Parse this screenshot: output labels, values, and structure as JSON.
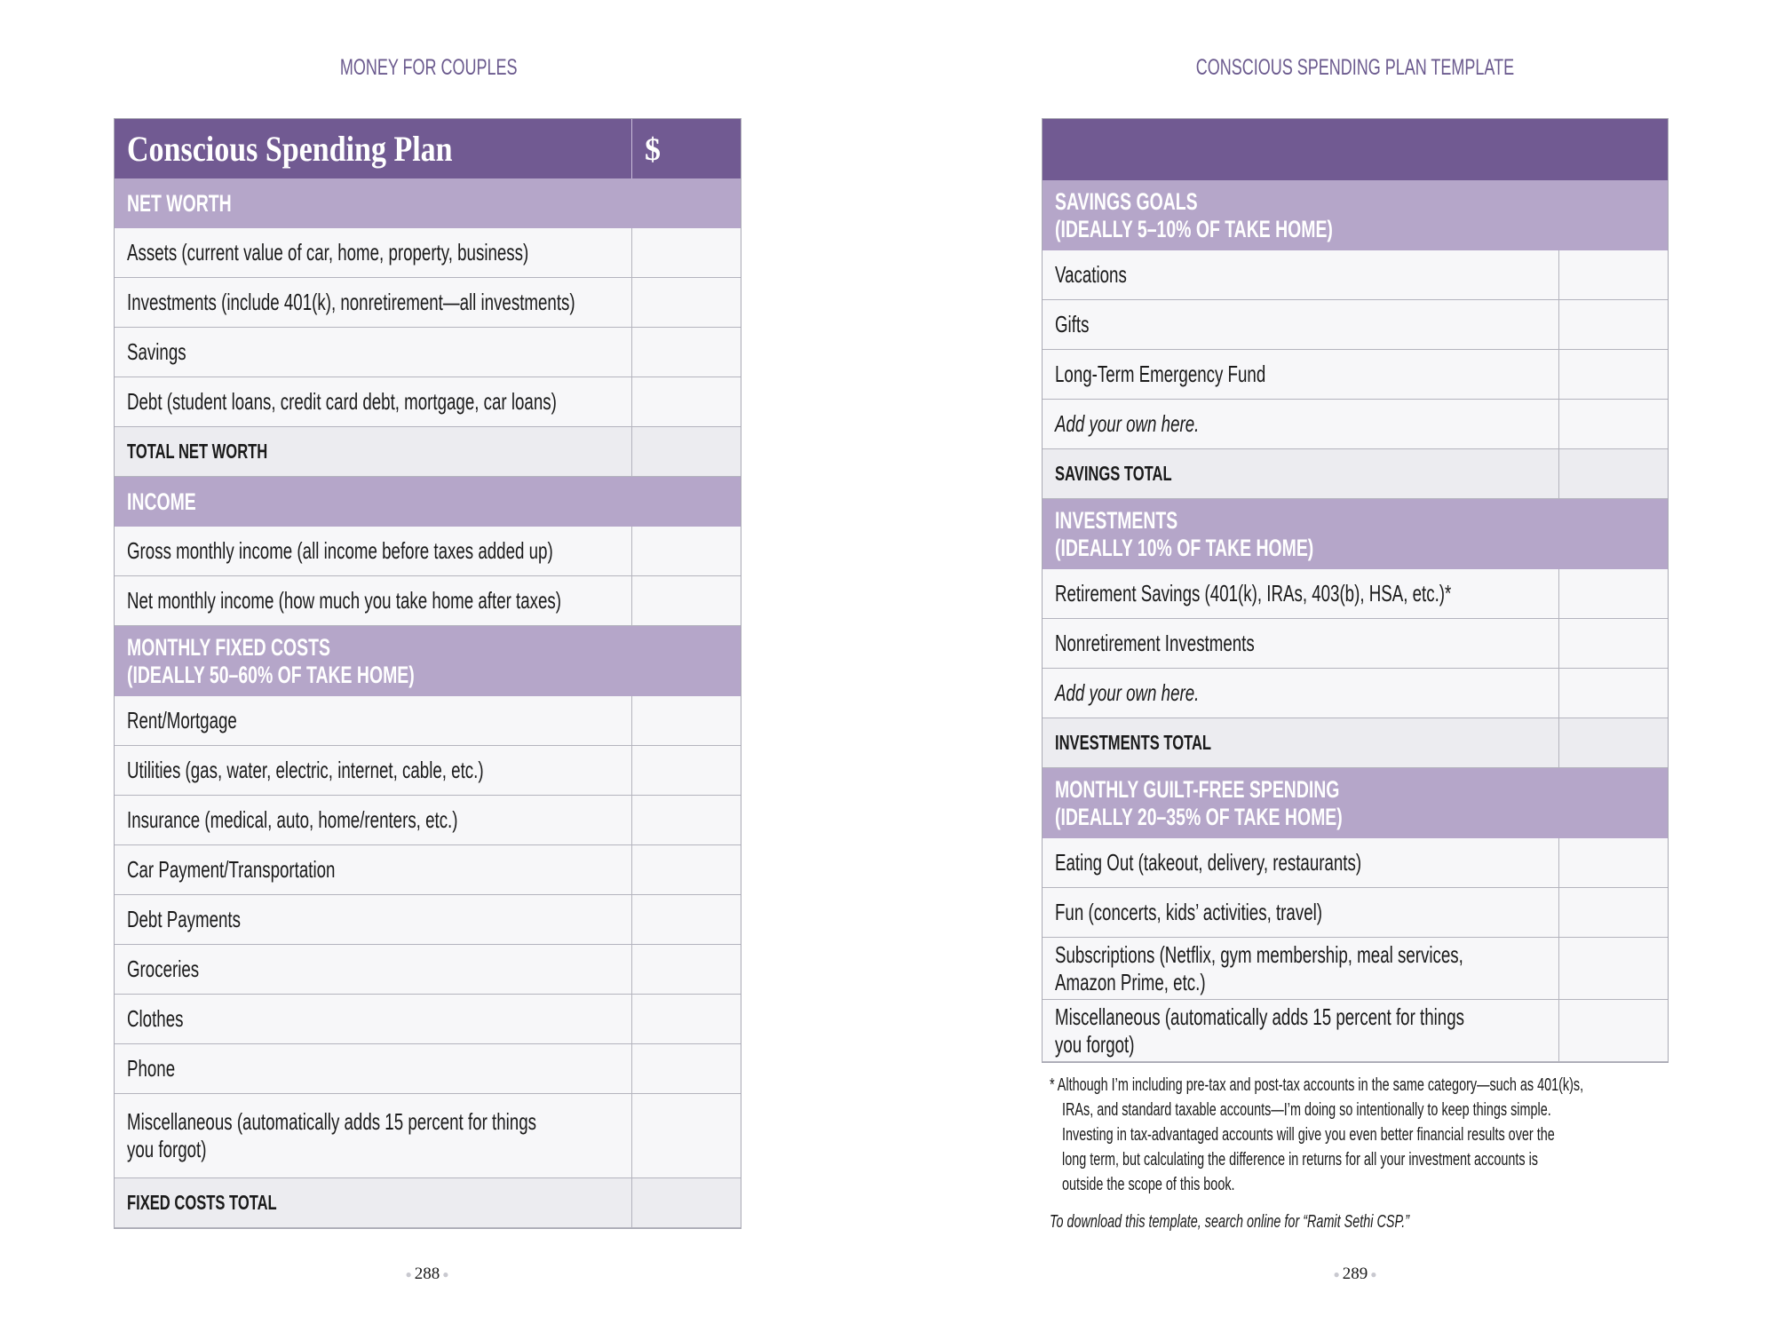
{
  "left_page": {
    "running_head": "MONEY FOR COUPLES",
    "page_number": "288",
    "table_title": "Conscious Spending Plan",
    "amount_header": "$",
    "rows": [
      {
        "type": "section",
        "label": "NET WORTH"
      },
      {
        "type": "item",
        "label": "Assets (current value of car, home, property, business)"
      },
      {
        "type": "item",
        "label": "Investments (include 401(k), nonretirement—all investments)"
      },
      {
        "type": "item",
        "label": "Savings"
      },
      {
        "type": "item",
        "label": "Debt (student loans, credit card debt, mortgage, car loans)"
      },
      {
        "type": "total",
        "label": "TOTAL NET WORTH"
      },
      {
        "type": "section",
        "label": "INCOME"
      },
      {
        "type": "item",
        "label": "Gross monthly income (all income before taxes added up)"
      },
      {
        "type": "item",
        "label": "Net monthly income (how much you take home after taxes)"
      },
      {
        "type": "section",
        "label": "MONTHLY FIXED COSTS\n(IDEALLY 50–60% OF TAKE HOME)"
      },
      {
        "type": "item",
        "label": "Rent/Mortgage"
      },
      {
        "type": "item",
        "label": "Utilities (gas, water, electric, internet, cable, etc.)"
      },
      {
        "type": "item",
        "label": "Insurance (medical, auto, home/renters, etc.)"
      },
      {
        "type": "item",
        "label": "Car Payment/Transportation"
      },
      {
        "type": "item",
        "label": "Debt Payments"
      },
      {
        "type": "item",
        "label": "Groceries"
      },
      {
        "type": "item",
        "label": "Clothes"
      },
      {
        "type": "item",
        "label": "Phone"
      },
      {
        "type": "item",
        "label": "Miscellaneous (automatically adds 15 percent for things\nyou forgot)"
      },
      {
        "type": "total",
        "label": "FIXED COSTS TOTAL"
      }
    ]
  },
  "right_page": {
    "running_head": "CONSCIOUS SPENDING PLAN TEMPLATE",
    "page_number": "289",
    "rows": [
      {
        "type": "section",
        "label": "SAVINGS GOALS\n(IDEALLY 5–10% OF TAKE HOME)"
      },
      {
        "type": "item",
        "label": "Vacations"
      },
      {
        "type": "item",
        "label": "Gifts"
      },
      {
        "type": "item",
        "label": "Long-Term Emergency Fund"
      },
      {
        "type": "italic",
        "label": "Add your own here."
      },
      {
        "type": "total",
        "label": "SAVINGS TOTAL"
      },
      {
        "type": "section",
        "label": "INVESTMENTS\n(IDEALLY 10% OF TAKE HOME)"
      },
      {
        "type": "item",
        "label": "Retirement Savings (401(k), IRAs, 403(b), HSA, etc.)*"
      },
      {
        "type": "item",
        "label": "Nonretirement Investments"
      },
      {
        "type": "italic",
        "label": "Add your own here."
      },
      {
        "type": "total",
        "label": "INVESTMENTS TOTAL"
      },
      {
        "type": "section",
        "label": "MONTHLY GUILT-FREE SPENDING\n(IDEALLY 20–35% OF TAKE HOME)"
      },
      {
        "type": "item",
        "label": "Eating Out (takeout, delivery, restaurants)"
      },
      {
        "type": "item",
        "label": "Fun (concerts, kids’ activities, travel)"
      },
      {
        "type": "item",
        "label": "Subscriptions (Netflix, gym membership, meal services,\nAmazon Prime, etc.)"
      },
      {
        "type": "item",
        "label": "Miscellaneous (automatically adds 15 percent for things\nyou forgot)"
      }
    ],
    "footnote_lines": [
      "* Although I’m including pre-tax and post-tax accounts in the same category—such as 401(k)s,",
      "IRAs, and standard taxable accounts—I’m doing so intentionally to keep things simple.",
      "Investing in tax-advantaged accounts will give you even better financial results over the",
      "long term, but calculating the difference in returns for all your investment accounts is",
      "outside the scope of this book."
    ],
    "download_note": "To download this template, search online for “Ramit Sethi CSP.”"
  },
  "colors": {
    "header_purple": "#715a92",
    "section_purple": "#b5a6c9",
    "running_head": "#6b5a8e",
    "total_row": "#ececf0"
  }
}
